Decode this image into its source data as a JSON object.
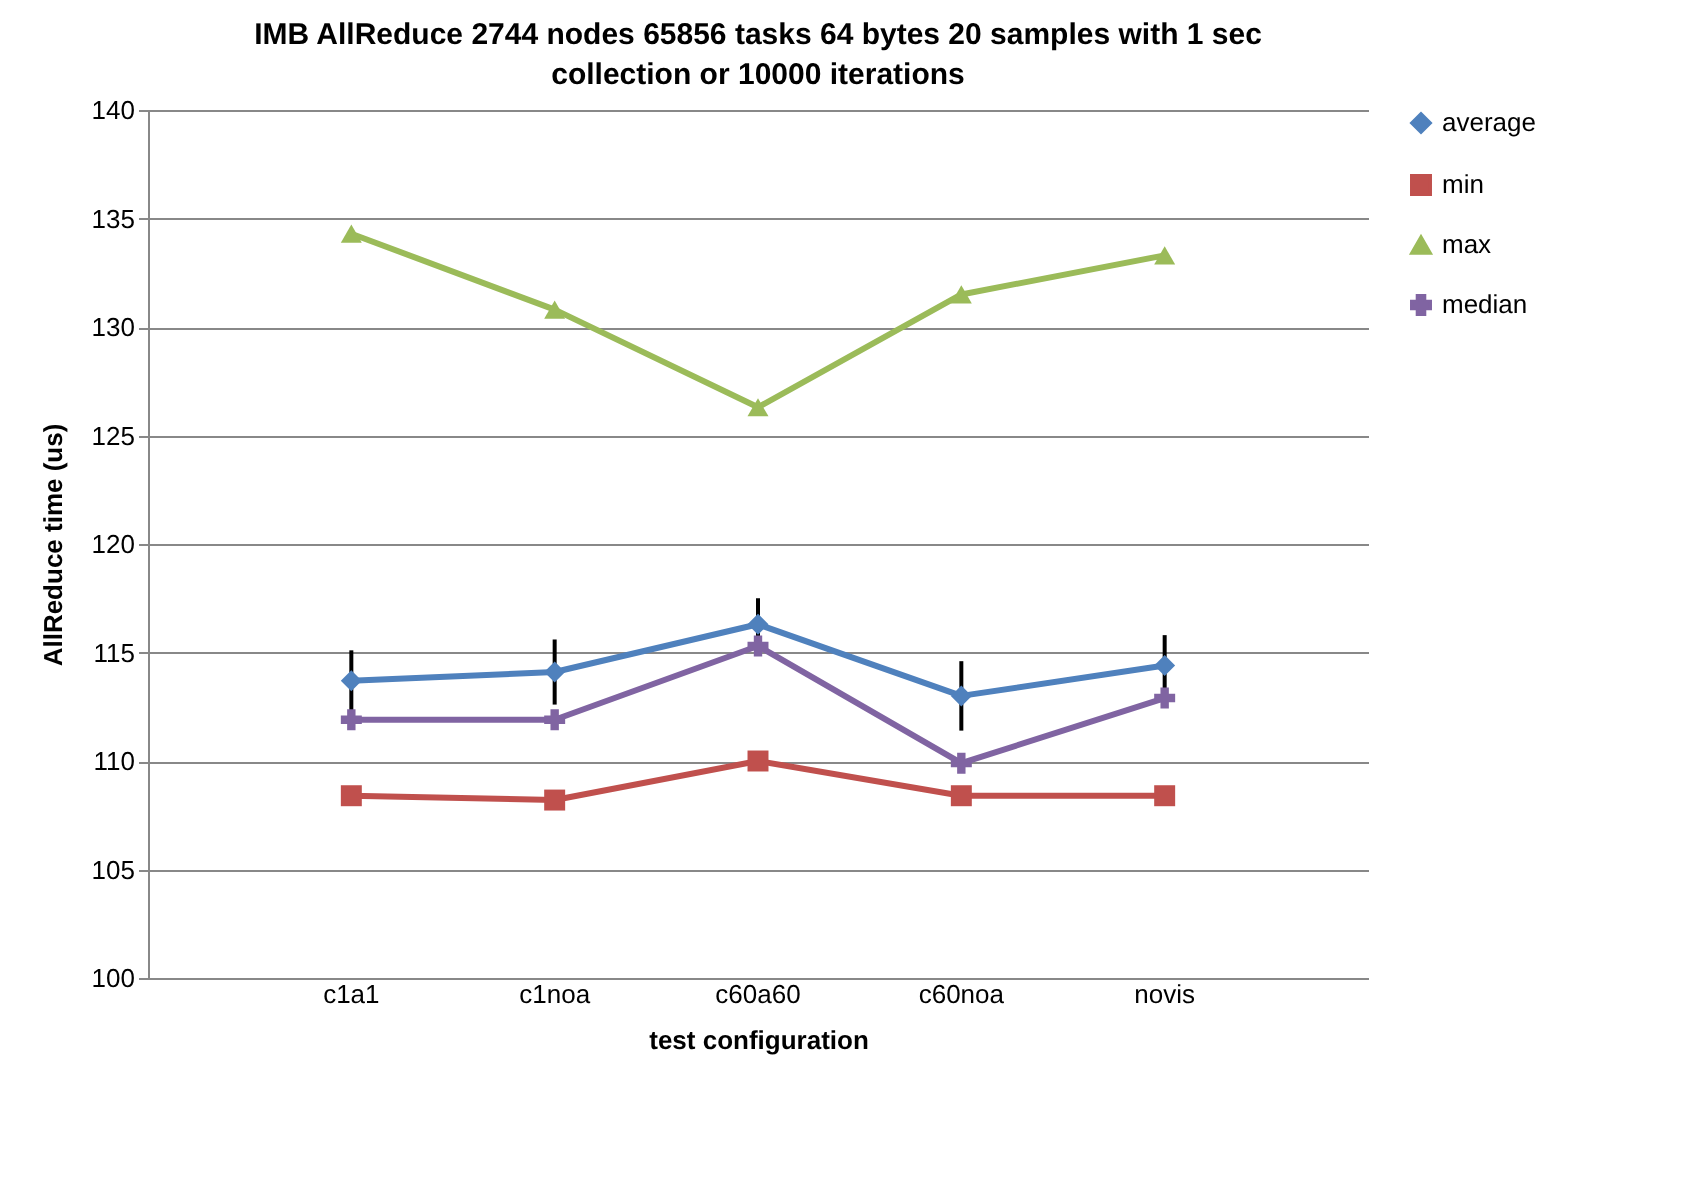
{
  "chart_data": {
    "type": "line",
    "title": "IMB AllReduce 2744 nodes 65856 tasks 64 bytes 20 samples with 1 sec collection or 10000 iterations",
    "xlabel": "test configuration",
    "ylabel": "AllReduce time (us)",
    "categories": [
      "c1a1",
      "c1noa",
      "c60a60",
      "c60noa",
      "novis"
    ],
    "series": [
      {
        "name": "average",
        "color": "#4f81bd",
        "marker": "diamond",
        "values": [
          113.7,
          114.1,
          116.3,
          113.0,
          114.4
        ],
        "errors": [
          1.4,
          1.5,
          1.2,
          1.6,
          1.4
        ]
      },
      {
        "name": "min",
        "color": "#c0504d",
        "marker": "square",
        "values": [
          108.4,
          108.2,
          110.0,
          108.4,
          108.4
        ]
      },
      {
        "name": "max",
        "color": "#9bbb59",
        "marker": "triangle",
        "values": [
          134.3,
          130.8,
          126.3,
          131.5,
          133.3
        ]
      },
      {
        "name": "median",
        "color": "#8064a2",
        "marker": "cross",
        "values": [
          111.9,
          111.9,
          115.3,
          109.9,
          112.9
        ]
      }
    ],
    "ylim": [
      100,
      140
    ],
    "yticks": [
      100,
      105,
      110,
      115,
      120,
      125,
      130,
      135,
      140
    ],
    "grid": "y",
    "legend": "right"
  }
}
